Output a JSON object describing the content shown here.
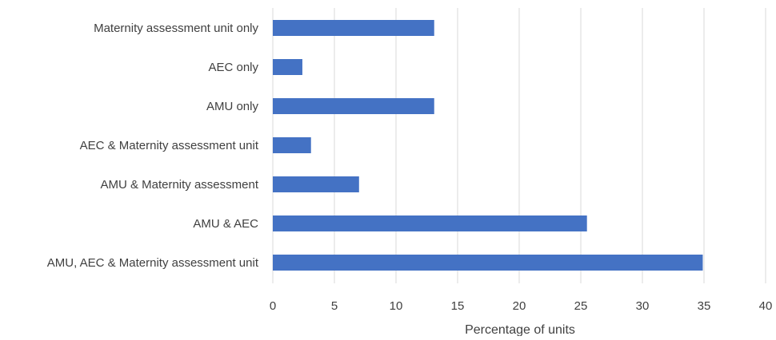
{
  "chart_data": {
    "type": "bar",
    "orientation": "horizontal",
    "categories": [
      "Maternity assessment unit only",
      "AEC only",
      "AMU only",
      "AEC & Maternity assessment unit",
      "AMU & Maternity assessment",
      "AMU & AEC",
      "AMU, AEC & Maternity assessment unit"
    ],
    "values": [
      13.1,
      2.4,
      13.1,
      3.1,
      7.0,
      25.5,
      34.9
    ],
    "xlabel": "Percentage of units",
    "ylabel": "",
    "title": "",
    "xlim": [
      0,
      40
    ],
    "xticks": [
      "0",
      "5",
      "10",
      "15",
      "20",
      "25",
      "30",
      "35",
      "40"
    ],
    "grid": "vertical",
    "legend": "none",
    "bar_color": "#4472c4",
    "grid_color": "#d9d9d9",
    "text_color": "#404040"
  }
}
